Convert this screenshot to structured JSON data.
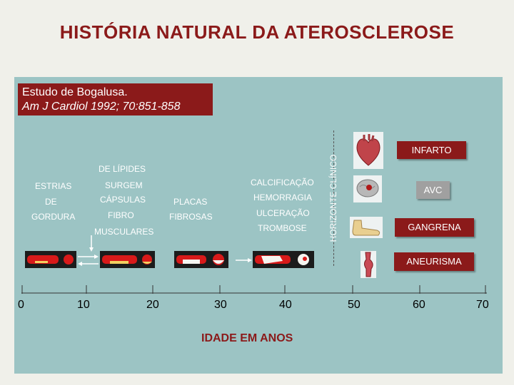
{
  "title": "HISTÓRIA NATURAL DA ATEROSCLEROSE",
  "study": {
    "line1": "Estudo de Bogalusa.",
    "line2": "Am J Cardiol 1992; 70:851-858"
  },
  "stages": {
    "estrias": [
      "ESTRIAS",
      "DE",
      "GORDURA"
    ],
    "lipides": [
      "DE LÍPIDES",
      "SURGEM",
      "CÁPSULAS",
      "FIBRO",
      "MUSCULARES"
    ],
    "placas": [
      "PLACAS",
      "FIBROSAS"
    ],
    "complicacoes": [
      "CALCIFICAÇÃO",
      "HEMORRAGIA",
      "ULCERAÇÃO",
      "TROMBOSE"
    ]
  },
  "horizon_label": "HORIZONTE CLÍNICO",
  "outcomes": [
    "INFARTO",
    "AVC",
    "GANGRENA",
    "ANEURISMA"
  ],
  "organ_icons": [
    "heart-icon",
    "brain-icon",
    "foot-icon",
    "aorta-icon"
  ],
  "x_axis": {
    "ticks": [
      "0",
      "10",
      "20",
      "30",
      "40",
      "50",
      "60",
      "70"
    ],
    "label": "IDADE EM ANOS"
  },
  "colors": {
    "title": "#8b1a1a",
    "panel": "#9cc4c4",
    "box": "#8b1a1a",
    "avc": "#a0a0a0"
  }
}
